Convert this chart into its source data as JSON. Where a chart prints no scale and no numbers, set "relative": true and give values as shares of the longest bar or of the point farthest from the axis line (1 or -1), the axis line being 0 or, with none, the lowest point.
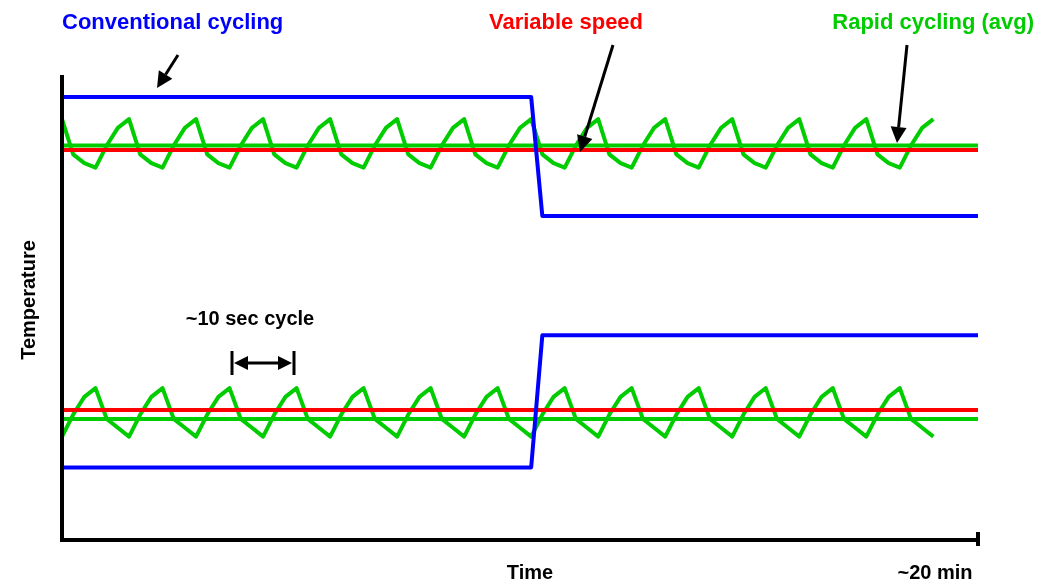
{
  "chart_data": {
    "type": "line",
    "relative": true,
    "xlabel": "Time",
    "ylabel": "Temperature",
    "marker": "none",
    "line_style": "solid",
    "annotations": [
      "~10 sec cycle",
      "~20 min"
    ],
    "categories": [
      null,
      null,
      null,
      null,
      null,
      null,
      null,
      null,
      null,
      null,
      null,
      null,
      null,
      null,
      null,
      null,
      null,
      null,
      null,
      null,
      null,
      null,
      null,
      null,
      null,
      null,
      null,
      null,
      null,
      null,
      null,
      null,
      null,
      null,
      null,
      null,
      null,
      null,
      null,
      null,
      null,
      null,
      null,
      null,
      null,
      null,
      null,
      null,
      null,
      null,
      null,
      null,
      null,
      null,
      null,
      null,
      null,
      null,
      null,
      null,
      null,
      null,
      null,
      null,
      null,
      null,
      null,
      null,
      null,
      null,
      null,
      null,
      null,
      null,
      null,
      null,
      null,
      null,
      null,
      null,
      null,
      null,
      null
    ],
    "series": [
      {
        "name": "Conventional cycling",
        "color": "#0000ff",
        "values": [
          1,
          1,
          1,
          1,
          1,
          1,
          1,
          1,
          1,
          1,
          1,
          1,
          1,
          1,
          1,
          1,
          1,
          1,
          1,
          1,
          1,
          1,
          1,
          1,
          1,
          1,
          1,
          1,
          1,
          1,
          1,
          1,
          1,
          1,
          1,
          1,
          1,
          1,
          1,
          1,
          1,
          1,
          1,
          0.73,
          0.73,
          0.73,
          0.73,
          0.73,
          0.73,
          0.73,
          0.73,
          0.73,
          0.73,
          0.73,
          0.73,
          0.73,
          0.73,
          0.73,
          0.73,
          0.73,
          0.73,
          0.73,
          0.73,
          0.73,
          0.73,
          0.73,
          0.73,
          0.73,
          0.73,
          0.73,
          0.73,
          0.73,
          0.73,
          0.73,
          0.73,
          0.73,
          0.73,
          0.73,
          0.73,
          0.73,
          0.73,
          0.73,
          0.73
        ]
      },
      {
        "color": "#0000ff",
        "values": [
          0.16,
          0.16,
          0.16,
          0.16,
          0.16,
          0.16,
          0.16,
          0.16,
          0.16,
          0.16,
          0.16,
          0.16,
          0.16,
          0.16,
          0.16,
          0.16,
          0.16,
          0.16,
          0.16,
          0.16,
          0.16,
          0.16,
          0.16,
          0.16,
          0.16,
          0.16,
          0.16,
          0.16,
          0.16,
          0.16,
          0.16,
          0.16,
          0.16,
          0.16,
          0.16,
          0.16,
          0.16,
          0.16,
          0.16,
          0.16,
          0.16,
          0.16,
          0.16,
          0.46,
          0.46,
          0.46,
          0.46,
          0.46,
          0.46,
          0.46,
          0.46,
          0.46,
          0.46,
          0.46,
          0.46,
          0.46,
          0.46,
          0.46,
          0.46,
          0.46,
          0.46,
          0.46,
          0.46,
          0.46,
          0.46,
          0.46,
          0.46,
          0.46,
          0.46,
          0.46,
          0.46,
          0.46,
          0.46,
          0.46,
          0.46,
          0.46,
          0.46,
          0.46,
          0.46,
          0.46,
          0.46,
          0.46,
          0.46
        ]
      },
      {
        "name": "Variable speed",
        "color": "#ff0000",
        "values": [
          0.88,
          0.88,
          0.88,
          0.88,
          0.88,
          0.88,
          0.88,
          0.88,
          0.88,
          0.88,
          0.88,
          0.88,
          0.88,
          0.88,
          0.88,
          0.88,
          0.88,
          0.88,
          0.88,
          0.88,
          0.88,
          0.88,
          0.88,
          0.88,
          0.88,
          0.88,
          0.88,
          0.88,
          0.88,
          0.88,
          0.88,
          0.88,
          0.88,
          0.88,
          0.88,
          0.88,
          0.88,
          0.88,
          0.88,
          0.88,
          0.88,
          0.88,
          0.88,
          0.88,
          0.88,
          0.88,
          0.88,
          0.88,
          0.88,
          0.88,
          0.88,
          0.88,
          0.88,
          0.88,
          0.88,
          0.88,
          0.88,
          0.88,
          0.88,
          0.88,
          0.88,
          0.88,
          0.88,
          0.88,
          0.88,
          0.88,
          0.88,
          0.88,
          0.88,
          0.88,
          0.88,
          0.88,
          0.88,
          0.88,
          0.88,
          0.88,
          0.88,
          0.88,
          0.88,
          0.88,
          0.88,
          0.88,
          0.88
        ]
      },
      {
        "color": "#ff0000",
        "values": [
          0.29,
          0.29,
          0.29,
          0.29,
          0.29,
          0.29,
          0.29,
          0.29,
          0.29,
          0.29,
          0.29,
          0.29,
          0.29,
          0.29,
          0.29,
          0.29,
          0.29,
          0.29,
          0.29,
          0.29,
          0.29,
          0.29,
          0.29,
          0.29,
          0.29,
          0.29,
          0.29,
          0.29,
          0.29,
          0.29,
          0.29,
          0.29,
          0.29,
          0.29,
          0.29,
          0.29,
          0.29,
          0.29,
          0.29,
          0.29,
          0.29,
          0.29,
          0.29,
          0.29,
          0.29,
          0.29,
          0.29,
          0.29,
          0.29,
          0.29,
          0.29,
          0.29,
          0.29,
          0.29,
          0.29,
          0.29,
          0.29,
          0.29,
          0.29,
          0.29,
          0.29,
          0.29,
          0.29,
          0.29,
          0.29,
          0.29,
          0.29,
          0.29,
          0.29,
          0.29,
          0.29,
          0.29,
          0.29,
          0.29,
          0.29,
          0.29,
          0.29,
          0.29,
          0.29,
          0.29,
          0.29,
          0.29,
          0.29
        ]
      },
      {
        "color": "#00cc00",
        "values": [
          0.95,
          0.87,
          0.85,
          0.84,
          0.89,
          0.93,
          0.95,
          0.87,
          0.85,
          0.84,
          0.89,
          0.93,
          0.95,
          0.87,
          0.85,
          0.84,
          0.89,
          0.93,
          0.95,
          0.87,
          0.85,
          0.84,
          0.89,
          0.93,
          0.95,
          0.87,
          0.85,
          0.84,
          0.89,
          0.93,
          0.95,
          0.87,
          0.85,
          0.84,
          0.89,
          0.93,
          0.95,
          0.87,
          0.85,
          0.84,
          0.89,
          0.93,
          0.95,
          0.87,
          0.85,
          0.84,
          0.89,
          0.93,
          0.95,
          0.87,
          0.85,
          0.84,
          0.89,
          0.93,
          0.95,
          0.87,
          0.85,
          0.84,
          0.89,
          0.93,
          0.95,
          0.87,
          0.85,
          0.84,
          0.89,
          0.93,
          0.95,
          0.87,
          0.85,
          0.84,
          0.89,
          0.93,
          0.95,
          0.87,
          0.85,
          0.84,
          0.89,
          0.93,
          0.95,
          null,
          null,
          null,
          null
        ]
      },
      {
        "color": "#00cc00",
        "values": [
          0.23,
          0.28,
          0.32,
          0.34,
          0.27,
          0.25,
          0.23,
          0.28,
          0.32,
          0.34,
          0.27,
          0.25,
          0.23,
          0.28,
          0.32,
          0.34,
          0.27,
          0.25,
          0.23,
          0.28,
          0.32,
          0.34,
          0.27,
          0.25,
          0.23,
          0.28,
          0.32,
          0.34,
          0.27,
          0.25,
          0.23,
          0.28,
          0.32,
          0.34,
          0.27,
          0.25,
          0.23,
          0.28,
          0.32,
          0.34,
          0.27,
          0.25,
          0.23,
          0.28,
          0.32,
          0.34,
          0.27,
          0.25,
          0.23,
          0.28,
          0.32,
          0.34,
          0.27,
          0.25,
          0.23,
          0.28,
          0.32,
          0.34,
          0.27,
          0.25,
          0.23,
          0.28,
          0.32,
          0.34,
          0.27,
          0.25,
          0.23,
          0.28,
          0.32,
          0.34,
          0.27,
          0.25,
          0.23,
          0.28,
          0.32,
          0.34,
          0.27,
          0.25,
          0.23,
          null,
          null,
          null,
          null
        ]
      },
      {
        "name": "Rapid cycling (avg)",
        "color": "#00cc00",
        "values": [
          0.89,
          0.89,
          0.89,
          0.89,
          0.89,
          0.89,
          0.89,
          0.89,
          0.89,
          0.89,
          0.89,
          0.89,
          0.89,
          0.89,
          0.89,
          0.89,
          0.89,
          0.89,
          0.89,
          0.89,
          0.89,
          0.89,
          0.89,
          0.89,
          0.89,
          0.89,
          0.89,
          0.89,
          0.89,
          0.89,
          0.89,
          0.89,
          0.89,
          0.89,
          0.89,
          0.89,
          0.89,
          0.89,
          0.89,
          0.89,
          0.89,
          0.89,
          0.89,
          0.89,
          0.89,
          0.89,
          0.89,
          0.89,
          0.89,
          0.89,
          0.89,
          0.89,
          0.89,
          0.89,
          0.89,
          0.89,
          0.89,
          0.89,
          0.89,
          0.89,
          0.89,
          0.89,
          0.89,
          0.89,
          0.89,
          0.89,
          0.89,
          0.89,
          0.89,
          0.89,
          0.89,
          0.89,
          0.89,
          0.89,
          0.89,
          0.89,
          0.89,
          0.89,
          0.89,
          0.89,
          0.89,
          0.89,
          0.89
        ]
      },
      {
        "color": "#00cc00",
        "values": [
          0.27,
          0.27,
          0.27,
          0.27,
          0.27,
          0.27,
          0.27,
          0.27,
          0.27,
          0.27,
          0.27,
          0.27,
          0.27,
          0.27,
          0.27,
          0.27,
          0.27,
          0.27,
          0.27,
          0.27,
          0.27,
          0.27,
          0.27,
          0.27,
          0.27,
          0.27,
          0.27,
          0.27,
          0.27,
          0.27,
          0.27,
          0.27,
          0.27,
          0.27,
          0.27,
          0.27,
          0.27,
          0.27,
          0.27,
          0.27,
          0.27,
          0.27,
          0.27,
          0.27,
          0.27,
          0.27,
          0.27,
          0.27,
          0.27,
          0.27,
          0.27,
          0.27,
          0.27,
          0.27,
          0.27,
          0.27,
          0.27,
          0.27,
          0.27,
          0.27,
          0.27,
          0.27,
          0.27,
          0.27,
          0.27,
          0.27,
          0.27,
          0.27,
          0.27,
          0.27,
          0.27,
          0.27,
          0.27,
          0.27,
          0.27,
          0.27,
          0.27,
          0.27,
          0.27,
          0.27,
          0.27,
          0.27,
          0.27
        ]
      }
    ]
  }
}
